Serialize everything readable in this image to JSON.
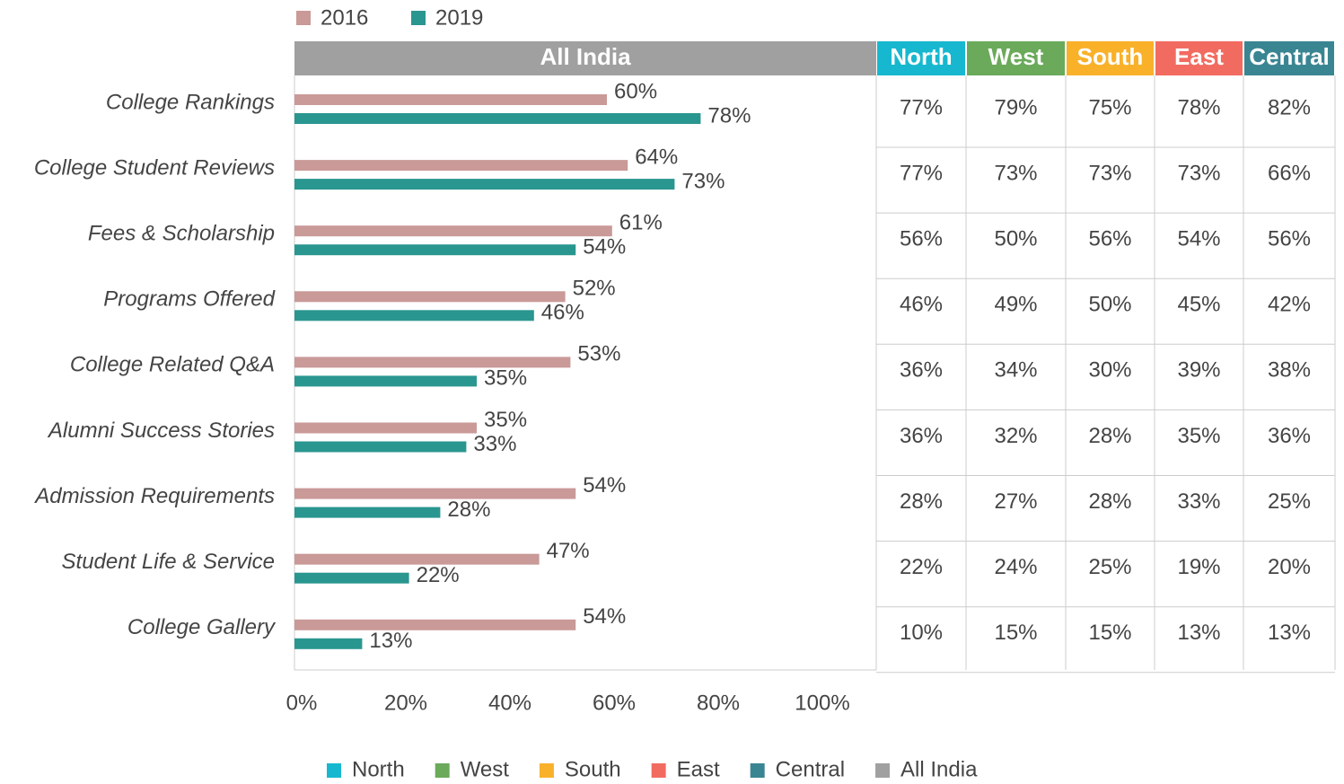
{
  "chart_data": {
    "type": "hbar",
    "categories": [
      "College Rankings",
      "College Student Reviews",
      "Fees & Scholarship",
      "Programs Offered",
      "College Related Q&A",
      "Alumni Success Stories",
      "Admission Requirements",
      "Student Life & Service",
      "College Gallery"
    ],
    "series": [
      {
        "name": "2016",
        "color": "#c99a98",
        "values": [
          60,
          64,
          61,
          52,
          53,
          35,
          54,
          47,
          54
        ],
        "value_labels": [
          "60%",
          "64%",
          "61%",
          "52%",
          "53%",
          "35%",
          "54%",
          "47%",
          "54%"
        ]
      },
      {
        "name": "2019",
        "color": "#2a9690",
        "values": [
          78,
          73,
          54,
          46,
          35,
          33,
          28,
          22,
          13
        ],
        "value_labels": [
          "78%",
          "73%",
          "54%",
          "46%",
          "35%",
          "33%",
          "28%",
          "22%",
          "13%"
        ]
      }
    ],
    "xlim": [
      0,
      100
    ],
    "xticks": [
      {
        "value": 0,
        "label": "0%"
      },
      {
        "value": 20,
        "label": "20%"
      },
      {
        "value": 40,
        "label": "40%"
      },
      {
        "value": 60,
        "label": "60%"
      },
      {
        "value": 80,
        "label": "80%"
      },
      {
        "value": 100,
        "label": "100%"
      }
    ],
    "legend": "top-left"
  },
  "table": {
    "overall": {
      "name": "All India",
      "color": "#a0a0a0"
    },
    "columns": [
      {
        "name": "North",
        "color": "#17b8cf"
      },
      {
        "name": "West",
        "color": "#6aaa5a"
      },
      {
        "name": "South",
        "color": "#f9b12a"
      },
      {
        "name": "East",
        "color": "#f26b60"
      },
      {
        "name": "Central",
        "color": "#3a8592"
      }
    ],
    "rows": [
      [
        "77%",
        "79%",
        "75%",
        "78%",
        "82%"
      ],
      [
        "77%",
        "73%",
        "73%",
        "73%",
        "66%"
      ],
      [
        "56%",
        "50%",
        "56%",
        "54%",
        "56%"
      ],
      [
        "46%",
        "49%",
        "50%",
        "45%",
        "42%"
      ],
      [
        "36%",
        "34%",
        "30%",
        "39%",
        "38%"
      ],
      [
        "36%",
        "32%",
        "28%",
        "35%",
        "36%"
      ],
      [
        "28%",
        "27%",
        "28%",
        "33%",
        "25%"
      ],
      [
        "22%",
        "24%",
        "25%",
        "19%",
        "20%"
      ],
      [
        "10%",
        "15%",
        "15%",
        "13%",
        "13%"
      ]
    ]
  }
}
